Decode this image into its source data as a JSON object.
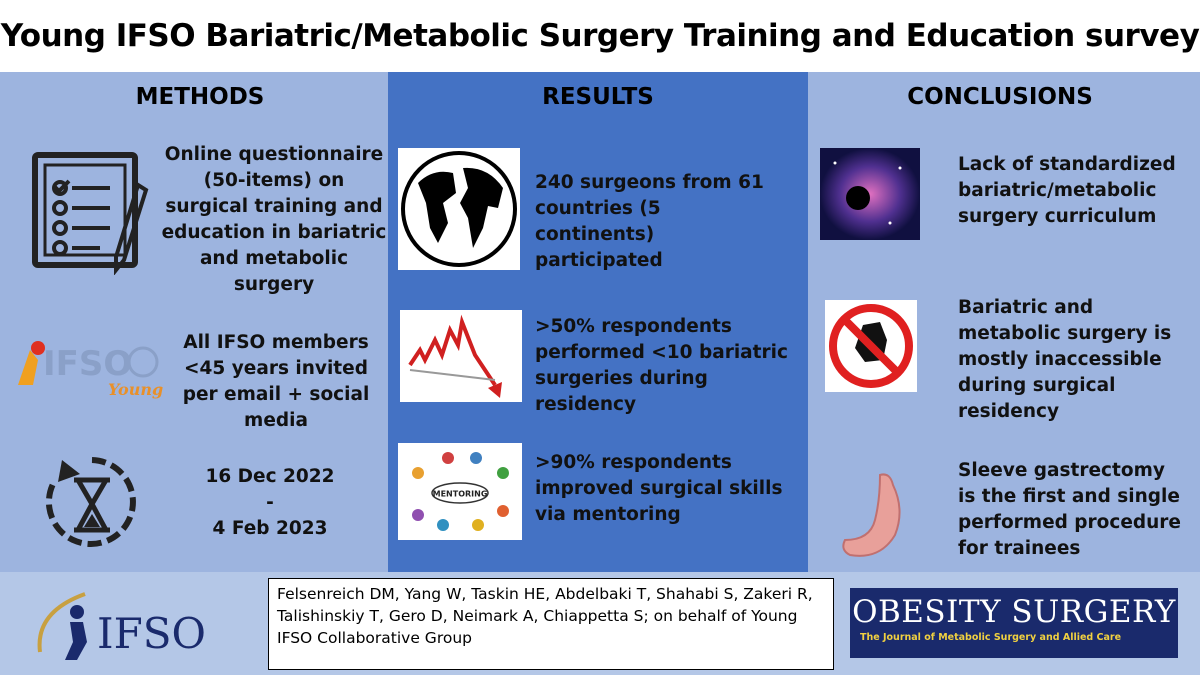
{
  "header": {
    "title": "Young IFSO Bariatric/Metabolic Surgery Training and Education survey"
  },
  "methods": {
    "heading": "METHODS",
    "items": [
      {
        "text": "Online questionnaire (50-items) on surgical training and education in bariatric and metabolic surgery"
      },
      {
        "text": "All IFSO members <45 years invited per email + social media"
      },
      {
        "lines": [
          "16 Dec 2022",
          "-",
          "4 Feb 2023"
        ]
      }
    ],
    "logo": {
      "name": "IFSO",
      "tag": "Young"
    }
  },
  "results": {
    "heading": "RESULTS",
    "items": [
      {
        "text": "240 surgeons from 61 countries (5 continents) participated"
      },
      {
        "text": ">50% respondents performed <10 bariatric surgeries during residency"
      },
      {
        "text": ">90% respondents improved surgical skills via mentoring"
      }
    ],
    "mentoring_label": "MENTORING"
  },
  "conclusions": {
    "heading": "CONCLUSIONS",
    "items": [
      {
        "text": "Lack of standardized bariatric/metabolic surgery curriculum"
      },
      {
        "text": "Bariatric and metabolic surgery is mostly inaccessible during surgical residency"
      },
      {
        "text": "Sleeve gastrectomy is the first and single performed procedure for trainees"
      }
    ]
  },
  "footer": {
    "society": "IFSO",
    "authors": "Felsenreich DM, Yang W, Taskin HE, Abdelbaki T, Shahabi S, Zakeri R, Talishinskiy T, Gero D, Neimark A, Chiappetta S; on behalf of Young IFSO Collaborative Group",
    "journal": "Obesity Surgery",
    "journal_subtitle": "The Journal of Metabolic Surgery and Allied Care"
  }
}
